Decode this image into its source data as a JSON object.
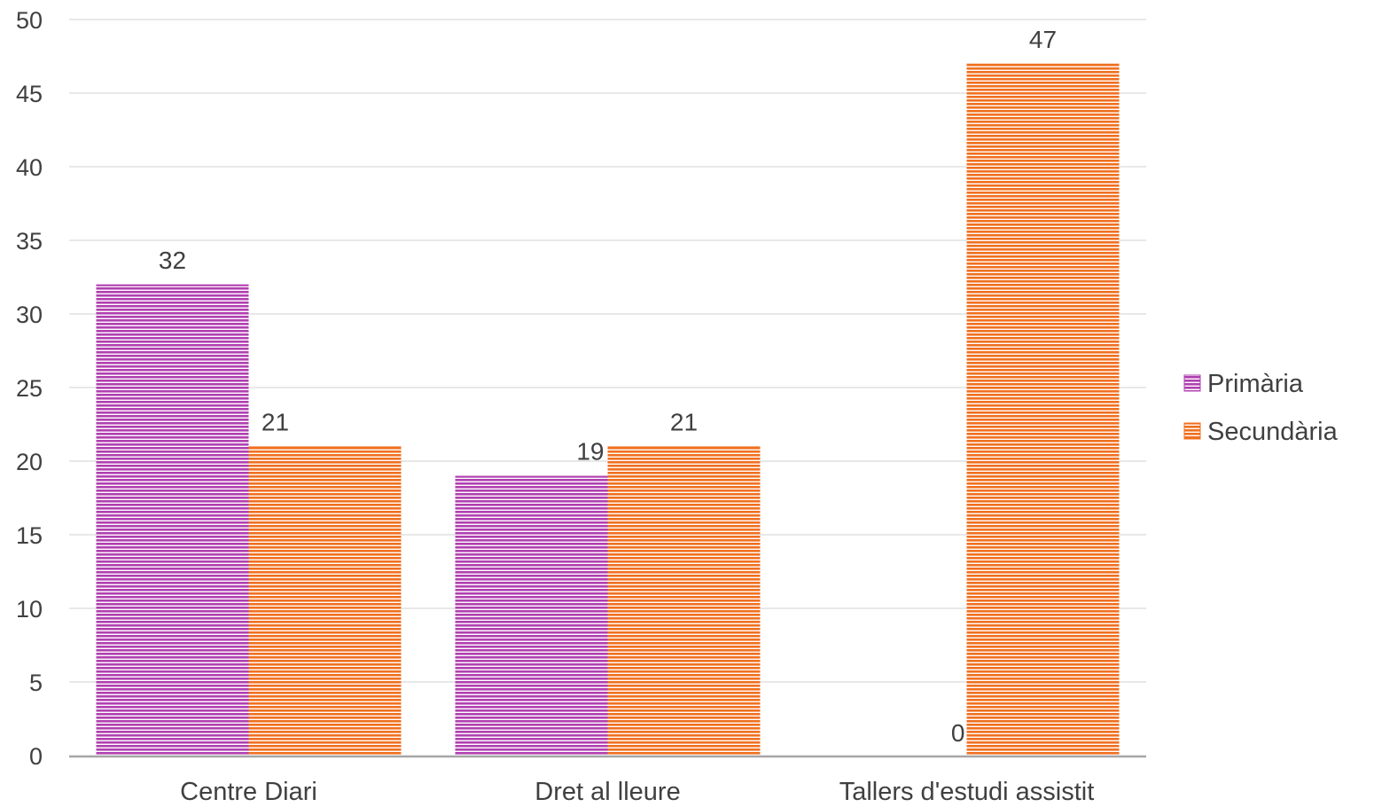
{
  "chart_data": {
    "type": "bar",
    "title": "",
    "xlabel": "",
    "ylabel": "",
    "categories": [
      "Centre Diari",
      "Dret al lleure",
      "Tallers d'estudi assistit"
    ],
    "series": [
      {
        "name": "Primària",
        "values": [
          32,
          19,
          0
        ],
        "color": "#b040b0"
      },
      {
        "name": "Secundària",
        "values": [
          21,
          21,
          47
        ],
        "color": "#f07020"
      }
    ],
    "ylim": [
      0,
      50
    ],
    "yticks": [
      0,
      5,
      10,
      15,
      20,
      25,
      30,
      35,
      40,
      45,
      50
    ],
    "grid": true,
    "legend_position": "right",
    "data_labels": true,
    "bar_pattern": "horizontal-stripes"
  }
}
